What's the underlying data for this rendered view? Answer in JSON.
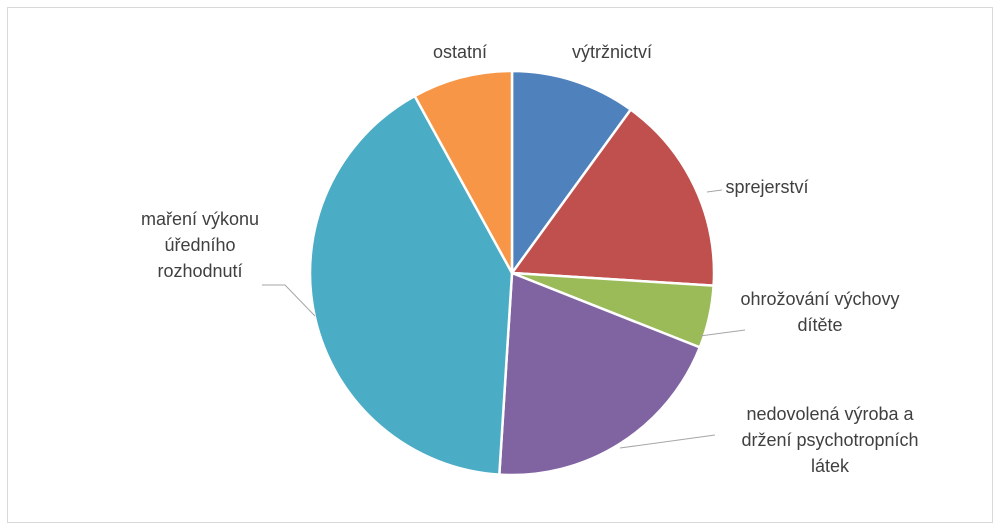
{
  "chart_data": {
    "type": "pie",
    "categories": [
      "výtržnictví",
      "sprejerství",
      "ohrožování výchovy dítěte",
      "nedovolená výroba a držení psychotropních látek",
      "maření výkonu úředního rozhodnutí",
      "ostatní"
    ],
    "values": [
      10,
      16,
      5,
      20,
      41,
      8
    ],
    "colors": [
      "#4f81bd",
      "#c0504d",
      "#9bbb59",
      "#8064a2",
      "#4bacc6",
      "#f79646"
    ]
  }
}
